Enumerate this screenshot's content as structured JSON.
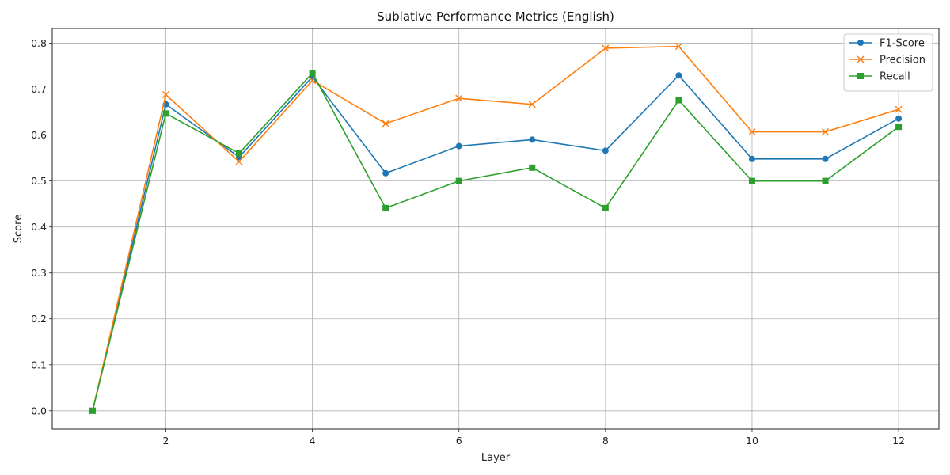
{
  "chart_data": {
    "type": "line",
    "title": "Sublative Performance Metrics (English)",
    "xlabel": "Layer",
    "ylabel": "Score",
    "x": [
      1,
      2,
      3,
      4,
      5,
      6,
      7,
      8,
      9,
      10,
      11,
      12
    ],
    "xlim": [
      0.45,
      12.55
    ],
    "ylim": [
      -0.04,
      0.832
    ],
    "xticks": [
      2,
      4,
      6,
      8,
      10,
      12
    ],
    "yticks": [
      0.0,
      0.1,
      0.2,
      0.3,
      0.4,
      0.5,
      0.6,
      0.7,
      0.8
    ],
    "grid": true,
    "legend_position": "top-right",
    "series": [
      {
        "name": "F1-Score",
        "color": "#1f77b4",
        "marker": "circle",
        "values": [
          0.0,
          0.667,
          0.552,
          0.727,
          0.517,
          0.576,
          0.59,
          0.566,
          0.73,
          0.548,
          0.548,
          0.636
        ]
      },
      {
        "name": "Precision",
        "color": "#ff7f0e",
        "marker": "x",
        "values": [
          0.0,
          0.688,
          0.542,
          0.719,
          0.625,
          0.68,
          0.667,
          0.789,
          0.793,
          0.607,
          0.607,
          0.656
        ]
      },
      {
        "name": "Recall",
        "color": "#2ca02c",
        "marker": "square",
        "values": [
          0.0,
          0.647,
          0.56,
          0.735,
          0.441,
          0.5,
          0.529,
          0.441,
          0.676,
          0.5,
          0.5,
          0.618
        ]
      }
    ]
  }
}
